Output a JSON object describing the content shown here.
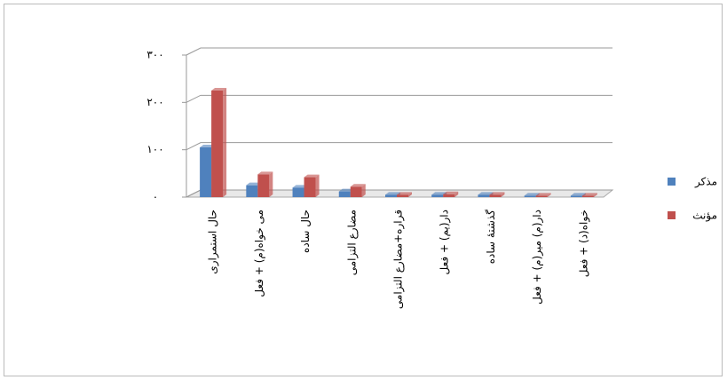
{
  "chart_data": {
    "type": "bar",
    "categories": [
      "حال استمراری",
      "می خواه(م) + فعل",
      "حال ساده",
      "مضارع التزامی",
      "قراره+مضارع التزامی",
      "دار(یم) + فعل",
      "گذشتهٔ ساده",
      "دار(م) میر(م) + فعل",
      "خواه(د) + فعل"
    ],
    "series": [
      {
        "name": "مذکر",
        "color": "#4f81bd",
        "values": [
          105,
          25,
          20,
          12,
          5,
          5,
          5,
          3,
          3
        ]
      },
      {
        "name": "مؤنث",
        "color": "#c0504d",
        "values": [
          225,
          48,
          42,
          22,
          5,
          6,
          5,
          3,
          3
        ]
      }
    ],
    "ylim": [
      0,
      300
    ],
    "yticks": [
      {
        "value": 0,
        "label": "۰"
      },
      {
        "value": 100,
        "label": "۱۰۰"
      },
      {
        "value": 200,
        "label": "۲۰۰"
      },
      {
        "value": 300,
        "label": "۳۰۰"
      }
    ],
    "grid": true,
    "legend": "right"
  }
}
